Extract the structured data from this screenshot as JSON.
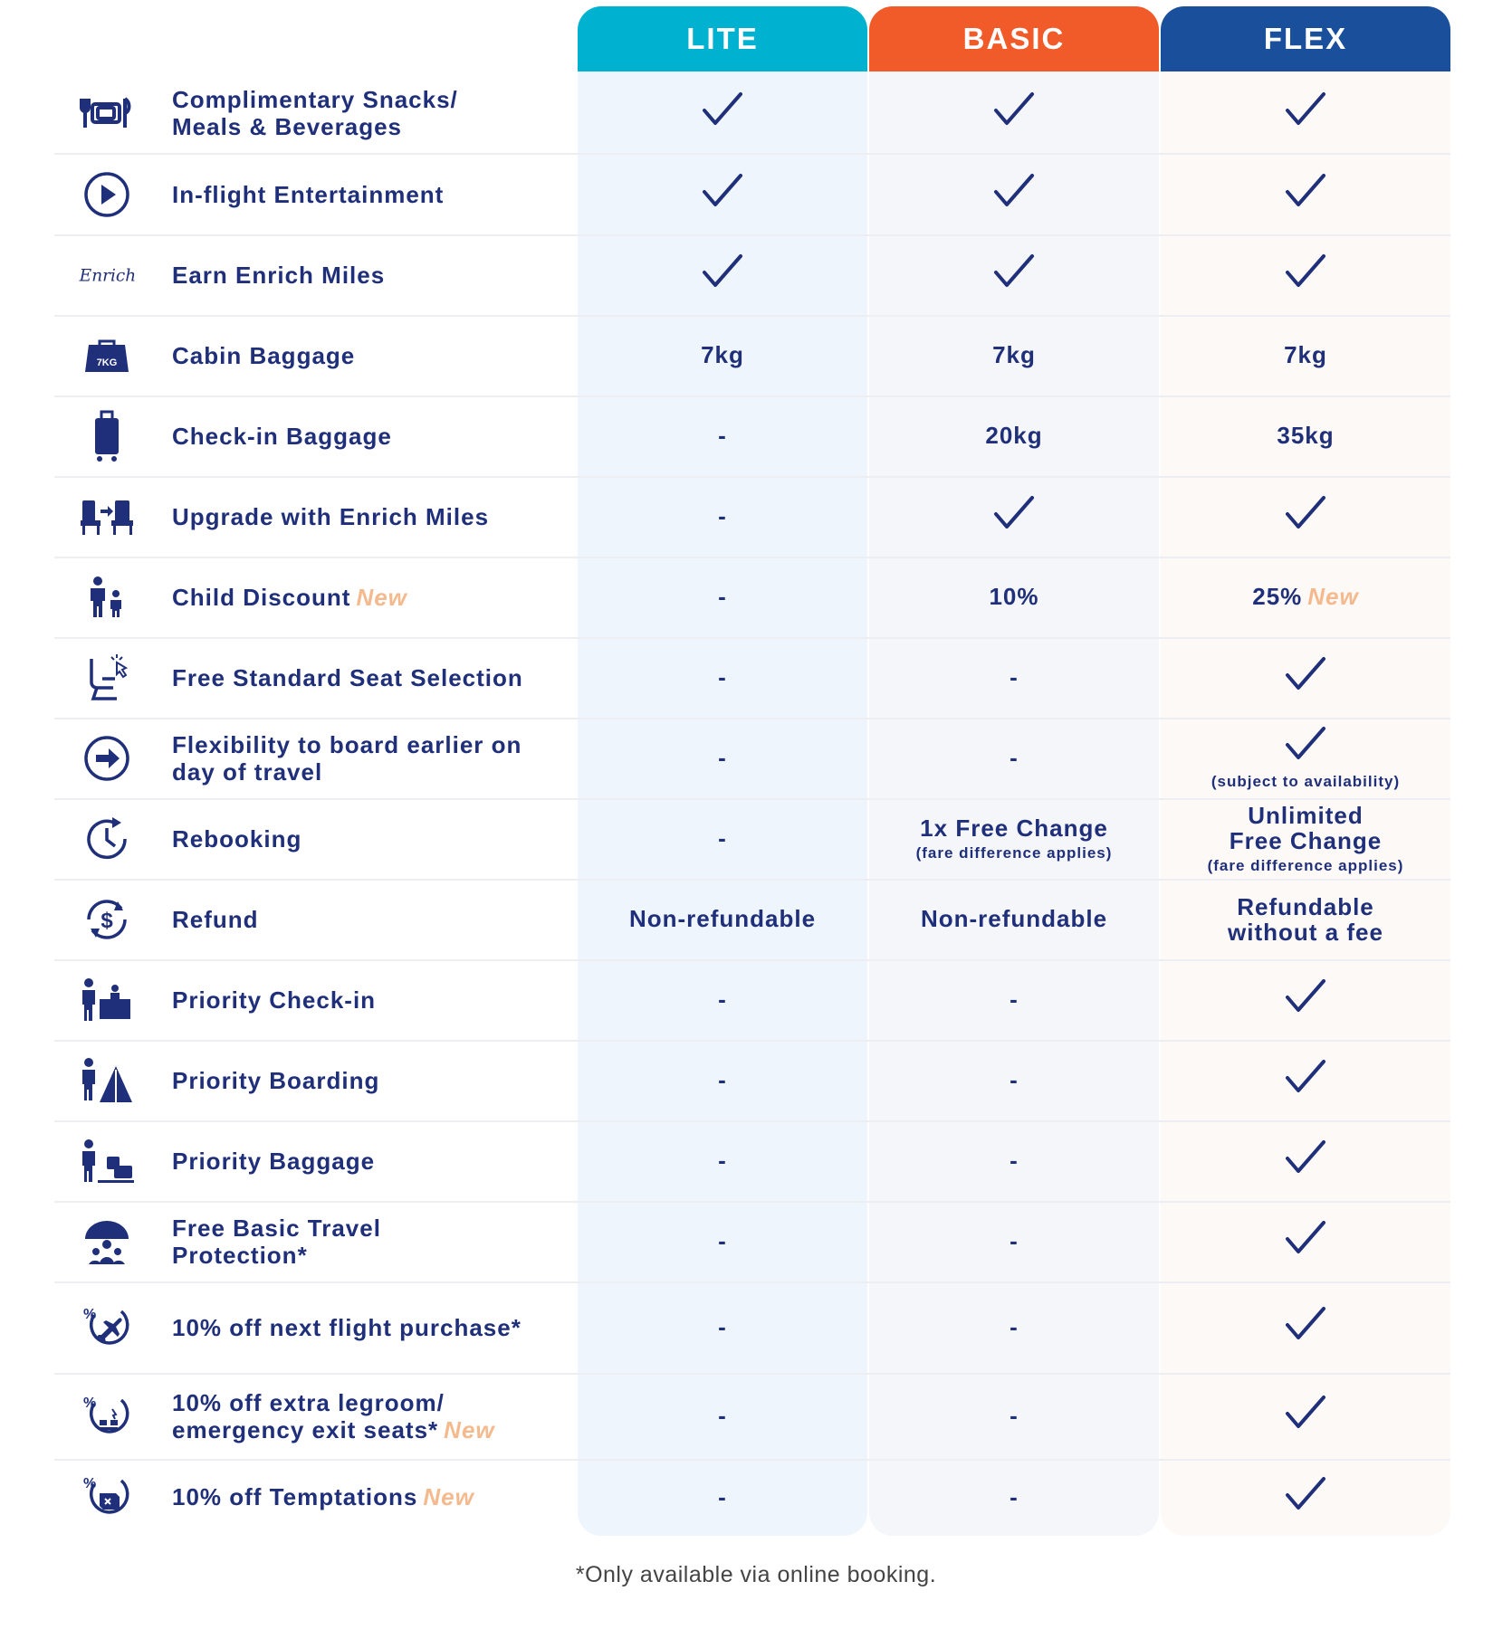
{
  "tiers": [
    {
      "name": "LITE",
      "color": "#00b2cf"
    },
    {
      "name": "BASIC",
      "color": "#f15a29"
    },
    {
      "name": "FLEX",
      "color": "#1a4f9c"
    }
  ],
  "accent_new_color": "#f5b98e",
  "text_color": "#1f2f7a",
  "new_label": "New",
  "rows": [
    {
      "feature": "Complimentary Snacks/ Meals & Beverages",
      "feature_lines": [
        "Complimentary Snacks/",
        "Meals & Beverages"
      ],
      "icon": "meal-icon",
      "values": [
        {
          "type": "check"
        },
        {
          "type": "check"
        },
        {
          "type": "check"
        }
      ]
    },
    {
      "feature": "In-flight Entertainment",
      "icon": "play-icon",
      "values": [
        {
          "type": "check"
        },
        {
          "type": "check"
        },
        {
          "type": "check"
        }
      ]
    },
    {
      "feature": "Earn Enrich Miles",
      "icon": "enrich-logo-icon",
      "icon_text": "Enrich",
      "values": [
        {
          "type": "check"
        },
        {
          "type": "check"
        },
        {
          "type": "check"
        }
      ]
    },
    {
      "feature": "Cabin Baggage",
      "icon": "cabin-bag-icon",
      "icon_text": "7KG",
      "values": [
        {
          "type": "text",
          "text": "7kg"
        },
        {
          "type": "text",
          "text": "7kg"
        },
        {
          "type": "text",
          "text": "7kg"
        }
      ]
    },
    {
      "feature": "Check-in Baggage",
      "icon": "suitcase-icon",
      "values": [
        {
          "type": "dash",
          "text": "-"
        },
        {
          "type": "text",
          "text": "20kg"
        },
        {
          "type": "text",
          "text": "35kg"
        }
      ]
    },
    {
      "feature": "Upgrade with Enrich Miles",
      "icon": "seat-upgrade-icon",
      "values": [
        {
          "type": "dash",
          "text": "-"
        },
        {
          "type": "check"
        },
        {
          "type": "check"
        }
      ]
    },
    {
      "feature": "Child Discount",
      "is_new": true,
      "icon": "family-icon",
      "values": [
        {
          "type": "dash",
          "text": "-"
        },
        {
          "type": "text",
          "text": "10%"
        },
        {
          "type": "text",
          "text": "25%",
          "is_new": true
        }
      ]
    },
    {
      "feature": "Free Standard Seat Selection",
      "icon": "seat-select-icon",
      "values": [
        {
          "type": "dash",
          "text": "-"
        },
        {
          "type": "dash",
          "text": "-"
        },
        {
          "type": "check"
        }
      ]
    },
    {
      "feature": "Flexibility to board earlier on day of travel",
      "feature_lines": [
        "Flexibility to board earlier on",
        "day of travel"
      ],
      "icon": "arrow-circle-icon",
      "values": [
        {
          "type": "dash",
          "text": "-"
        },
        {
          "type": "dash",
          "text": "-"
        },
        {
          "type": "check",
          "note": "(subject to availability)"
        }
      ]
    },
    {
      "feature": "Rebooking",
      "icon": "clock-icon",
      "values": [
        {
          "type": "dash",
          "text": "-"
        },
        {
          "type": "text",
          "lines": [
            "1x Free Change"
          ],
          "note": "(fare difference applies)"
        },
        {
          "type": "text",
          "lines": [
            "Unlimited",
            "Free Change"
          ],
          "note": "(fare difference applies)"
        }
      ]
    },
    {
      "feature": "Refund",
      "icon": "refund-icon",
      "values": [
        {
          "type": "text",
          "text": "Non-refundable"
        },
        {
          "type": "text",
          "text": "Non-refundable"
        },
        {
          "type": "text",
          "lines": [
            "Refundable",
            "without a fee"
          ]
        }
      ]
    },
    {
      "feature": "Priority Check-in",
      "icon": "priority-checkin-icon",
      "values": [
        {
          "type": "dash",
          "text": "-"
        },
        {
          "type": "dash",
          "text": "-"
        },
        {
          "type": "check"
        }
      ]
    },
    {
      "feature": "Priority Boarding",
      "icon": "priority-boarding-icon",
      "values": [
        {
          "type": "dash",
          "text": "-"
        },
        {
          "type": "dash",
          "text": "-"
        },
        {
          "type": "check"
        }
      ]
    },
    {
      "feature": "Priority Baggage",
      "icon": "priority-baggage-icon",
      "values": [
        {
          "type": "dash",
          "text": "-"
        },
        {
          "type": "dash",
          "text": "-"
        },
        {
          "type": "check"
        }
      ]
    },
    {
      "feature": "Free Basic Travel Protection*",
      "feature_lines": [
        "Free Basic Travel",
        "Protection*"
      ],
      "icon": "umbrella-family-icon",
      "values": [
        {
          "type": "dash",
          "text": "-"
        },
        {
          "type": "dash",
          "text": "-"
        },
        {
          "type": "check"
        }
      ]
    },
    {
      "feature": "10% off next flight purchase*",
      "icon": "percent-plane-icon",
      "values": [
        {
          "type": "dash",
          "text": "-"
        },
        {
          "type": "dash",
          "text": "-"
        },
        {
          "type": "check"
        }
      ]
    },
    {
      "feature": "10% off extra legroom/ emergency exit seats*",
      "feature_lines": [
        "10% off extra legroom/",
        "emergency exit seats*"
      ],
      "is_new": true,
      "icon": "percent-seat-icon",
      "values": [
        {
          "type": "dash",
          "text": "-"
        },
        {
          "type": "dash",
          "text": "-"
        },
        {
          "type": "check"
        }
      ]
    },
    {
      "feature": "10% off Temptations",
      "is_new": true,
      "icon": "percent-shop-icon",
      "values": [
        {
          "type": "dash",
          "text": "-"
        },
        {
          "type": "dash",
          "text": "-"
        },
        {
          "type": "check"
        }
      ]
    }
  ],
  "footnote": "*Only available via online booking."
}
